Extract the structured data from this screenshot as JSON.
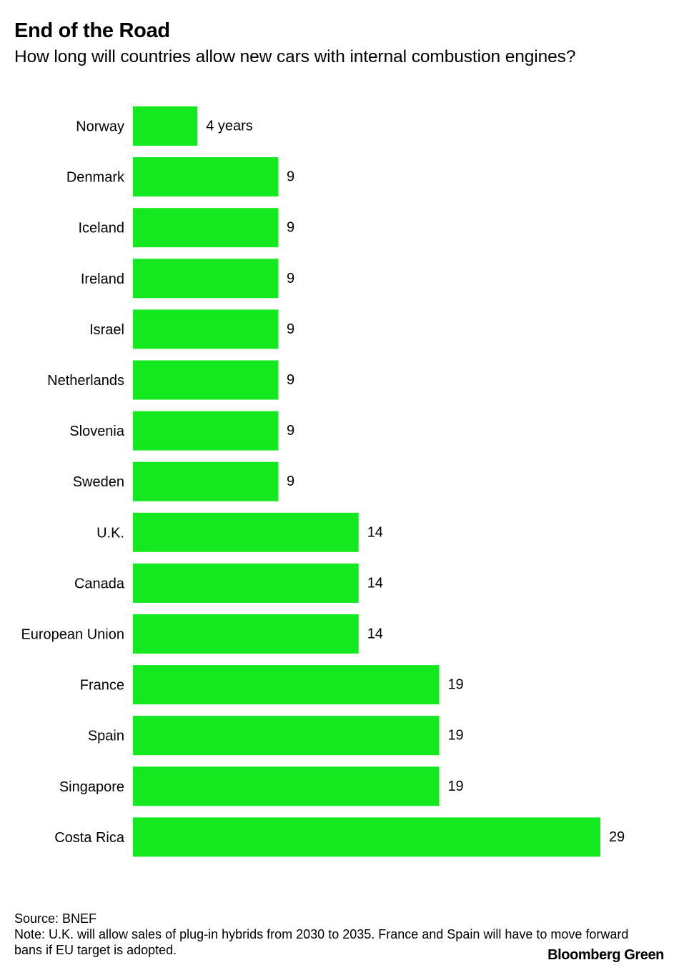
{
  "title": "End of the Road",
  "subtitle": "How long will countries allow new cars with internal combustion engines?",
  "chart_data": {
    "type": "bar",
    "orientation": "horizontal",
    "title": "End of the Road",
    "subtitle": "How long will countries allow new cars with internal combustion engines?",
    "categories": [
      "Norway",
      "Denmark",
      "Iceland",
      "Ireland",
      "Israel",
      "Netherlands",
      "Slovenia",
      "Sweden",
      "U.K.",
      "Canada",
      "European Union",
      "France",
      "Spain",
      "Singapore",
      "Costa Rica"
    ],
    "values": [
      4,
      9,
      9,
      9,
      9,
      9,
      9,
      9,
      14,
      14,
      14,
      19,
      19,
      19,
      29
    ],
    "value_labels": [
      "4 years",
      "9",
      "9",
      "9",
      "9",
      "9",
      "9",
      "9",
      "14",
      "14",
      "14",
      "19",
      "19",
      "19",
      "29"
    ],
    "bar_color": "#14e81e",
    "xlim": [
      0,
      29
    ],
    "xlabel": "",
    "ylabel": "",
    "grid": false,
    "legend": "none"
  },
  "footer": {
    "source": "Source: BNEF",
    "note": "Note: U.K. will allow sales of plug-in hybrids from 2030 to 2035. France and Spain will have to move forward bans if EU target is adopted.",
    "brand": "Bloomberg Green"
  }
}
